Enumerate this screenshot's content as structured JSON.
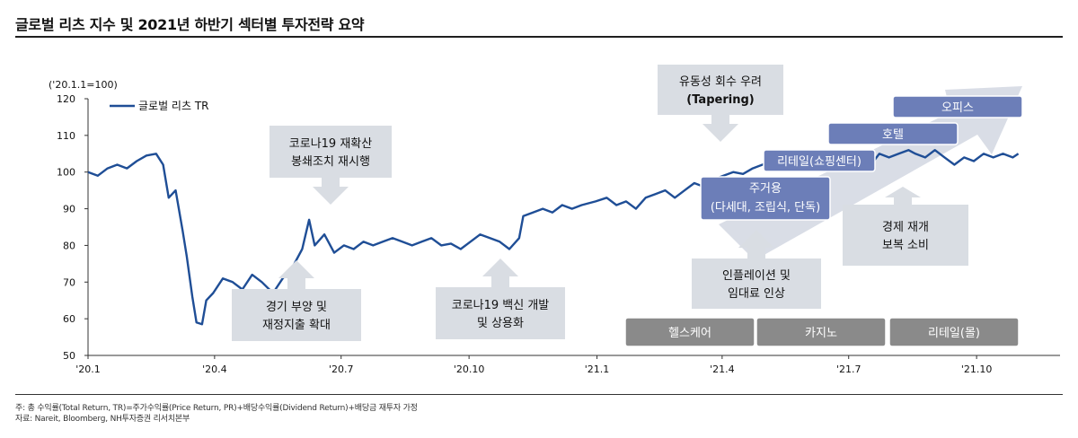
{
  "header": {
    "title": "글로벌 리츠 지수 및 2021년 하반기 섹터별 투자전략 요약"
  },
  "footer": {
    "note": "주: 총 수익률(Total Return, TR)=주가수익률(Price Return, PR)+배당수익률(Dividend Return)+배당금 재투자 가정",
    "source": "자료: Nareit, Bloomberg, NH투자증권 리서치본부"
  },
  "chart_data": {
    "type": "line",
    "title": "",
    "ylabel": "('20.1.1=100)",
    "ylim": [
      50,
      120
    ],
    "yticks": [
      50,
      60,
      70,
      80,
      90,
      100,
      110,
      120
    ],
    "xlim": [
      "2020-01-01",
      "2021-11-30"
    ],
    "xticks": [
      {
        "date": "2020-01-01",
        "label": "'20.1"
      },
      {
        "date": "2020-04-01",
        "label": "'20.4"
      },
      {
        "date": "2020-07-01",
        "label": "'20.7"
      },
      {
        "date": "2020-10-01",
        "label": "'20.10"
      },
      {
        "date": "2021-01-01",
        "label": "'21.1"
      },
      {
        "date": "2021-04-01",
        "label": "'21.4"
      },
      {
        "date": "2021-07-01",
        "label": "'21.7"
      },
      {
        "date": "2021-10-01",
        "label": "'21.10"
      }
    ],
    "legend": {
      "position": "top-left"
    },
    "grid": false,
    "series": [
      {
        "name": "글로벌 리츠 TR",
        "color": "#1f4e96",
        "points": [
          [
            "2020-01-01",
            100
          ],
          [
            "2020-01-08",
            99
          ],
          [
            "2020-01-15",
            101
          ],
          [
            "2020-01-22",
            102
          ],
          [
            "2020-01-29",
            101
          ],
          [
            "2020-02-05",
            103
          ],
          [
            "2020-02-12",
            104.5
          ],
          [
            "2020-02-19",
            105
          ],
          [
            "2020-02-24",
            102
          ],
          [
            "2020-02-28",
            93
          ],
          [
            "2020-03-04",
            95
          ],
          [
            "2020-03-09",
            84
          ],
          [
            "2020-03-12",
            77
          ],
          [
            "2020-03-16",
            66
          ],
          [
            "2020-03-19",
            59
          ],
          [
            "2020-03-23",
            58.5
          ],
          [
            "2020-03-26",
            65
          ],
          [
            "2020-03-31",
            67
          ],
          [
            "2020-04-07",
            71
          ],
          [
            "2020-04-14",
            70
          ],
          [
            "2020-04-21",
            68
          ],
          [
            "2020-04-28",
            72
          ],
          [
            "2020-05-05",
            70
          ],
          [
            "2020-05-13",
            67
          ],
          [
            "2020-05-20",
            71
          ],
          [
            "2020-05-27",
            74
          ],
          [
            "2020-06-03",
            79
          ],
          [
            "2020-06-08",
            87
          ],
          [
            "2020-06-12",
            80
          ],
          [
            "2020-06-19",
            83
          ],
          [
            "2020-06-26",
            78
          ],
          [
            "2020-07-03",
            80
          ],
          [
            "2020-07-10",
            79
          ],
          [
            "2020-07-17",
            81
          ],
          [
            "2020-07-24",
            80
          ],
          [
            "2020-07-31",
            81
          ],
          [
            "2020-08-07",
            82
          ],
          [
            "2020-08-14",
            81
          ],
          [
            "2020-08-21",
            80
          ],
          [
            "2020-08-28",
            81
          ],
          [
            "2020-09-04",
            82
          ],
          [
            "2020-09-11",
            80
          ],
          [
            "2020-09-18",
            80.5
          ],
          [
            "2020-09-25",
            79
          ],
          [
            "2020-10-02",
            81
          ],
          [
            "2020-10-09",
            83
          ],
          [
            "2020-10-16",
            82
          ],
          [
            "2020-10-23",
            81
          ],
          [
            "2020-10-30",
            79
          ],
          [
            "2020-11-06",
            82
          ],
          [
            "2020-11-09",
            88
          ],
          [
            "2020-11-16",
            89
          ],
          [
            "2020-11-23",
            90
          ],
          [
            "2020-11-30",
            89
          ],
          [
            "2020-12-07",
            91
          ],
          [
            "2020-12-14",
            90
          ],
          [
            "2020-12-21",
            91
          ],
          [
            "2020-12-31",
            92
          ],
          [
            "2021-01-08",
            93
          ],
          [
            "2021-01-15",
            91
          ],
          [
            "2021-01-22",
            92
          ],
          [
            "2021-01-29",
            90
          ],
          [
            "2021-02-05",
            93
          ],
          [
            "2021-02-12",
            94
          ],
          [
            "2021-02-19",
            95
          ],
          [
            "2021-02-26",
            93
          ],
          [
            "2021-03-05",
            95
          ],
          [
            "2021-03-12",
            97
          ],
          [
            "2021-03-19",
            96
          ],
          [
            "2021-03-26",
            98
          ],
          [
            "2021-04-02",
            99
          ],
          [
            "2021-04-09",
            100
          ],
          [
            "2021-04-16",
            99.5
          ],
          [
            "2021-04-23",
            101
          ],
          [
            "2021-04-30",
            102
          ],
          [
            "2021-05-07",
            103
          ],
          [
            "2021-05-14",
            101
          ],
          [
            "2021-05-21",
            102
          ],
          [
            "2021-05-28",
            103
          ],
          [
            "2021-06-04",
            104
          ],
          [
            "2021-06-11",
            105
          ],
          [
            "2021-06-18",
            103
          ],
          [
            "2021-06-25",
            104
          ],
          [
            "2021-07-02",
            105
          ],
          [
            "2021-07-09",
            104
          ],
          [
            "2021-07-16",
            105
          ],
          [
            "2021-07-19",
            103
          ],
          [
            "2021-07-23",
            105
          ],
          [
            "2021-07-30",
            104
          ],
          [
            "2021-08-06",
            105
          ],
          [
            "2021-08-13",
            106
          ],
          [
            "2021-08-18",
            105
          ],
          [
            "2021-08-25",
            104
          ],
          [
            "2021-09-01",
            106
          ],
          [
            "2021-09-08",
            104
          ],
          [
            "2021-09-15",
            102
          ],
          [
            "2021-09-22",
            104
          ],
          [
            "2021-09-29",
            103
          ],
          [
            "2021-10-06",
            105
          ],
          [
            "2021-10-13",
            104
          ],
          [
            "2021-10-20",
            105
          ],
          [
            "2021-10-27",
            104
          ],
          [
            "2021-10-31",
            105
          ]
        ]
      }
    ],
    "annotations": [
      {
        "id": "tapering",
        "lines": [
          "유동성 회수 우려",
          "(Tapering)"
        ]
      },
      {
        "id": "covid-relock",
        "lines": [
          "코로나19 재확산",
          "봉쇄조치 재시행"
        ]
      },
      {
        "id": "stimulus",
        "lines": [
          "경기 부양 및",
          "재정지출 확대"
        ]
      },
      {
        "id": "vaccine",
        "lines": [
          "코로나19 백신 개발",
          "및 상용화"
        ]
      },
      {
        "id": "inflation",
        "lines": [
          "인플레이션 및",
          "임대료 인상"
        ]
      },
      {
        "id": "reopening",
        "lines": [
          "경제 재개",
          "보복 소비"
        ]
      }
    ],
    "sector_boxes_rising": [
      "오피스",
      "호텔",
      "리테일(쇼핑센터)",
      "주거용 (다세대, 조립식, 단독)"
    ],
    "sector_boxes_bottom": [
      "헬스케어",
      "카지노",
      "리테일(몰)"
    ]
  },
  "colors": {
    "line": "#1f4e96",
    "note_box": "#d9dde3",
    "sector_box": "#6c7eb8",
    "bottom_box": "#8a8a8a",
    "big_arrow": "#d9dde6"
  }
}
